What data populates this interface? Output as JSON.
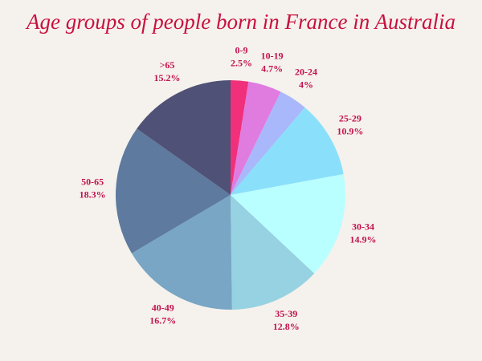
{
  "chart_data": {
    "type": "pie",
    "title": "Age groups of people born in France in Australia",
    "categories": [
      "0-9",
      "10-19",
      "20-24",
      "25-29",
      "30-34",
      "35-39",
      "40-49",
      "50-65",
      ">65"
    ],
    "values": [
      2.5,
      4.7,
      4,
      10.9,
      14.9,
      12.8,
      16.7,
      18.3,
      15.2
    ],
    "value_labels": [
      "2.5%",
      "4.7%",
      "4%",
      "10.9%",
      "14.9%",
      "12.8%",
      "16.7%",
      "18.3%",
      "15.2%"
    ],
    "colors": [
      "#f0307a",
      "#e07be0",
      "#a9b8fb",
      "#8ae0fb",
      "#baffff",
      "#96d2e2",
      "#78a6c4",
      "#5e7a9e",
      "#4f5176"
    ]
  }
}
